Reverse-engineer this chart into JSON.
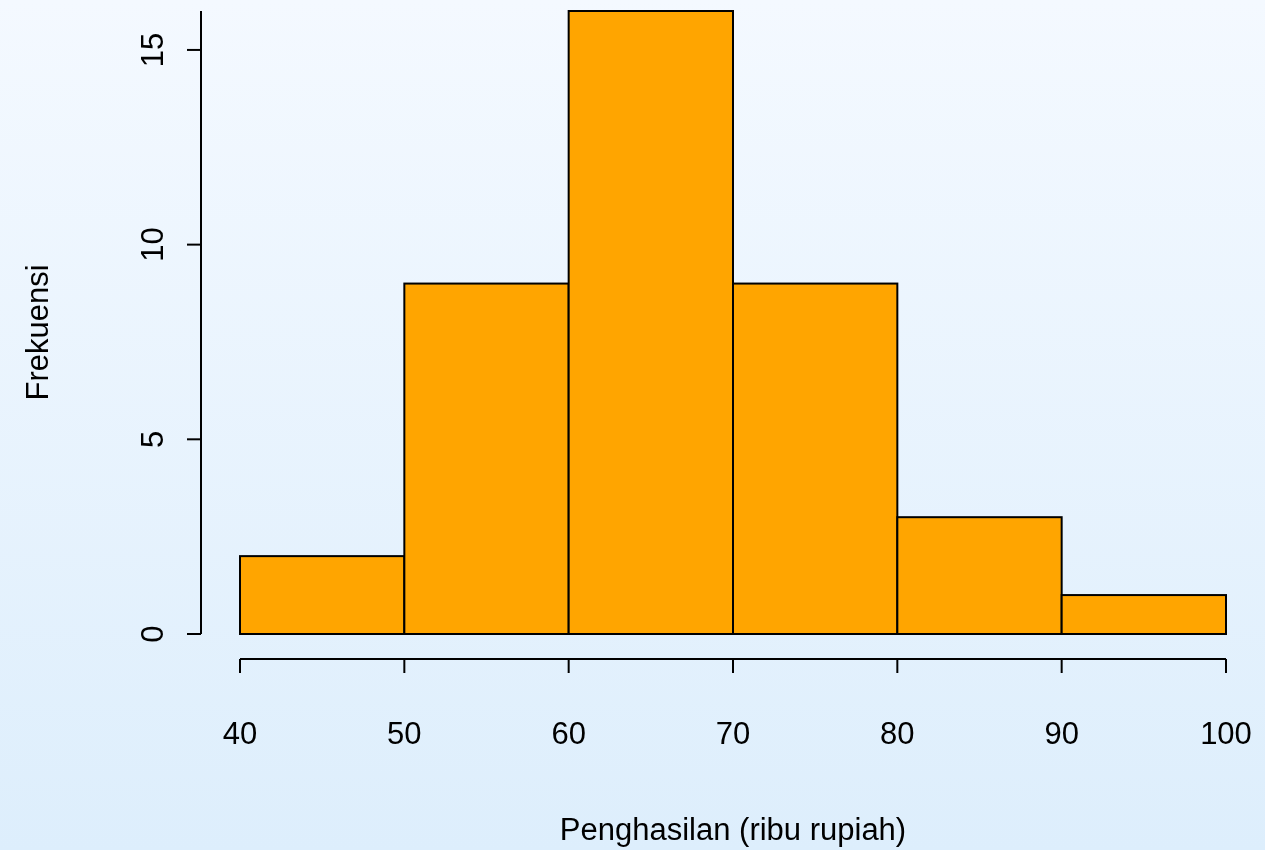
{
  "chart_data": {
    "type": "histogram",
    "xlabel": "Penghasilan (ribu rupiah)",
    "ylabel": "Frekuensi",
    "bins": [
      40,
      50,
      60,
      70,
      80,
      90,
      100
    ],
    "values": [
      2,
      9,
      16,
      9,
      3,
      1
    ],
    "color": "#ffa500",
    "xlim": [
      40,
      100
    ],
    "xticks": [
      40,
      50,
      60,
      70,
      80,
      90,
      100
    ],
    "ylim": [
      0,
      16
    ],
    "yticks": [
      0,
      5,
      10,
      15
    ],
    "grid": false
  }
}
